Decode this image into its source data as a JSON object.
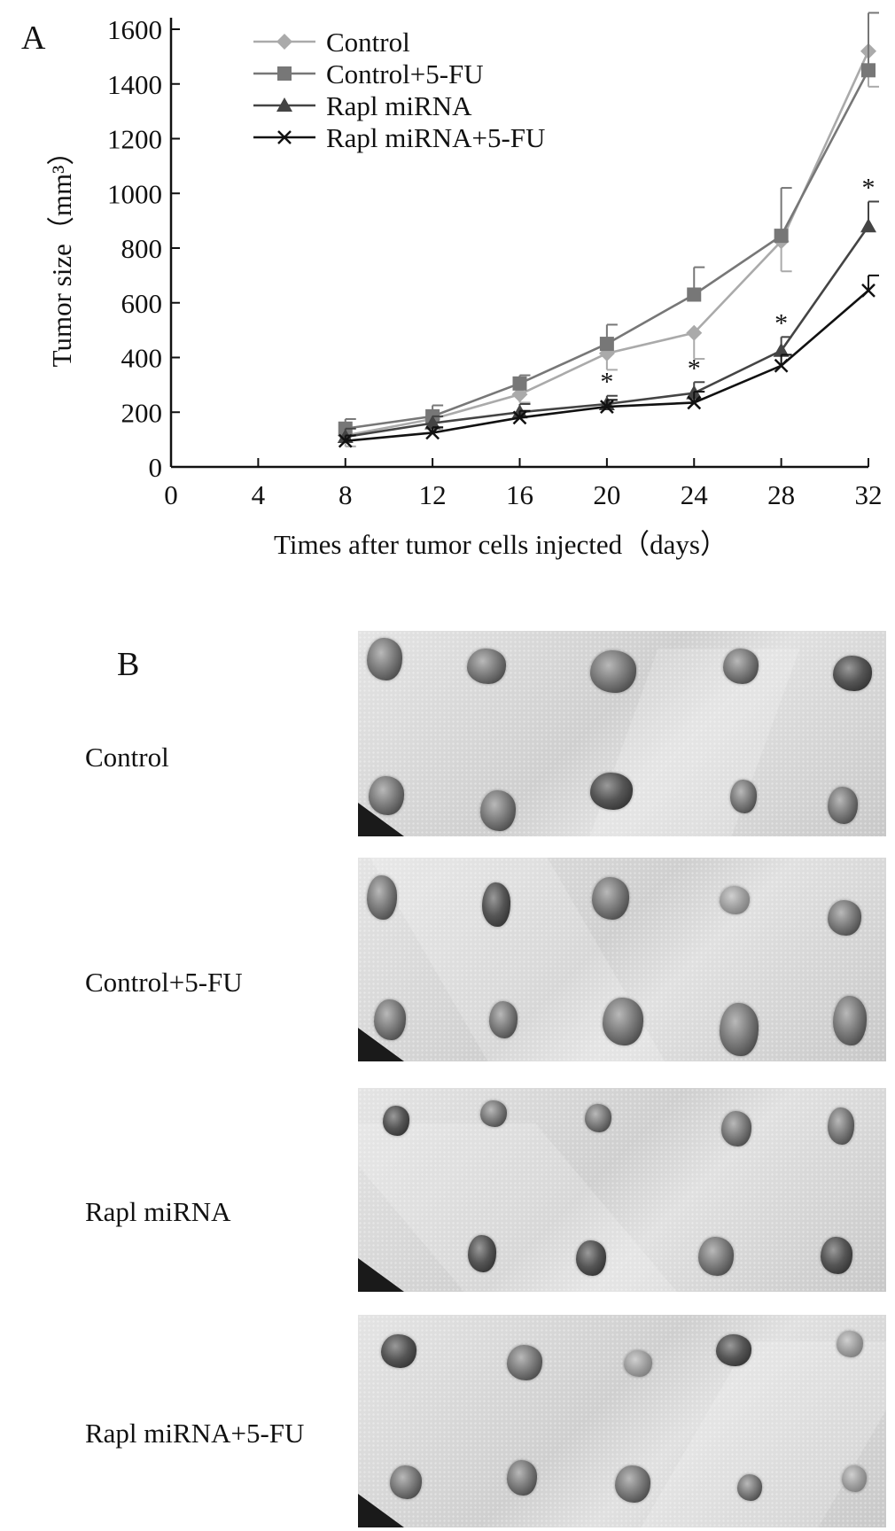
{
  "panel_a_label": "A",
  "panel_b_label": "B",
  "chart_data": {
    "type": "line",
    "xlabel": "Times after tumor cells injected（days）",
    "ylabel": "Tumor size（mm³）",
    "xlim": [
      0,
      32
    ],
    "ylim": [
      0,
      1600
    ],
    "xticks": [
      "0",
      "4",
      "8",
      "12",
      "16",
      "20",
      "24",
      "28",
      "32"
    ],
    "yticks": [
      "0",
      "200",
      "400",
      "600",
      "800",
      "1000",
      "1200",
      "1400",
      "1600"
    ],
    "grid": false,
    "legend_position": "top-left",
    "x": [
      8,
      12,
      16,
      20,
      24,
      28,
      32
    ],
    "series": [
      {
        "name": "Control",
        "marker": "diamond",
        "color": "#aaaaaa",
        "values": [
          115,
          175,
          265,
          415,
          490,
          825,
          1520
        ],
        "errors": [
          40,
          35,
          30,
          60,
          95,
          110,
          130
        ],
        "error_dir": "down"
      },
      {
        "name": "Control+5-FU",
        "marker": "square",
        "color": "#777777",
        "values": [
          140,
          185,
          305,
          450,
          630,
          845,
          1450
        ],
        "errors": [
          35,
          40,
          30,
          70,
          100,
          175,
          210
        ],
        "error_dir": "up"
      },
      {
        "name": "Rapl miRNA",
        "marker": "triangle",
        "color": "#444444",
        "values": [
          110,
          160,
          200,
          230,
          270,
          425,
          880
        ],
        "errors": [
          30,
          25,
          30,
          30,
          40,
          50,
          90
        ],
        "error_dir": "up"
      },
      {
        "name": "Rapl miRNA+5-FU",
        "marker": "x",
        "color": "#111111",
        "values": [
          95,
          125,
          180,
          220,
          235,
          370,
          645
        ],
        "errors": [
          20,
          20,
          25,
          25,
          40,
          40,
          55
        ],
        "error_dir": "up"
      }
    ],
    "annotations": [
      {
        "x": 20,
        "text": "*"
      },
      {
        "x": 24,
        "text": "*"
      },
      {
        "x": 28,
        "text": "*"
      },
      {
        "x": 32,
        "text": "*"
      }
    ]
  },
  "photo_rows": [
    {
      "label": "Control"
    },
    {
      "label": "Control+5-FU"
    },
    {
      "label": "Rapl miRNA"
    },
    {
      "label": "Rapl miRNA+5-FU"
    }
  ]
}
